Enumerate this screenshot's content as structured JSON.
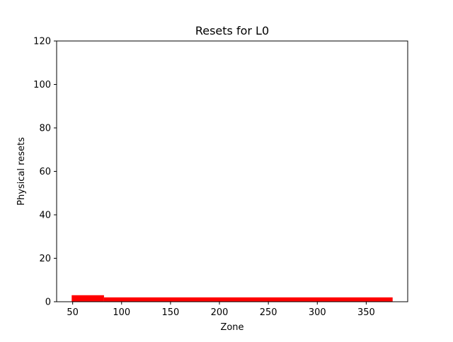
{
  "chart_data": {
    "type": "bar",
    "title": "Resets for L0",
    "xlabel": "Zone",
    "ylabel": "Physical resets",
    "xlim": [
      33.6,
      392.4
    ],
    "ylim": [
      0,
      120
    ],
    "xticks": [
      50,
      100,
      150,
      200,
      250,
      300,
      350
    ],
    "yticks": [
      0,
      20,
      40,
      60,
      80,
      100,
      120
    ],
    "grid": false,
    "legend": "none",
    "series": [
      {
        "color": "#ff0000",
        "bars": [
          {
            "x_start": 49,
            "x_end": 82,
            "value": 3
          },
          {
            "x_start": 82,
            "x_end": 377,
            "value": 2
          }
        ]
      }
    ]
  }
}
